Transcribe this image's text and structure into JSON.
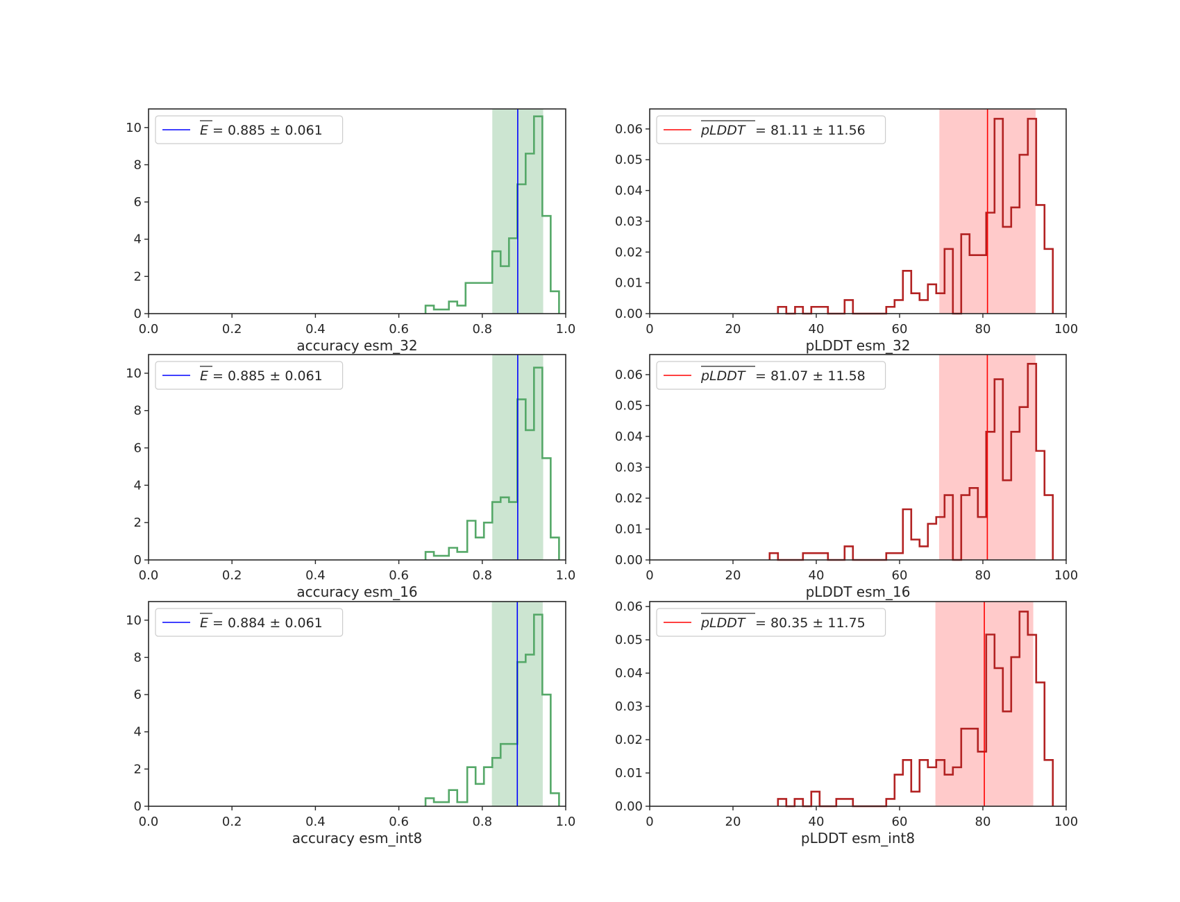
{
  "chart_data": [
    {
      "type": "histogram",
      "position": "row 1, left",
      "xlabel": "accuracy esm_32",
      "xlim": [
        0.0,
        1.0
      ],
      "ylim": [
        0,
        11
      ],
      "xticks": [
        0.0,
        0.2,
        0.4,
        0.6,
        0.8,
        1.0
      ],
      "xtick_labels": [
        "0.0",
        "0.2",
        "0.4",
        "0.6",
        "0.8",
        "1.0"
      ],
      "yticks": [
        0,
        2,
        4,
        6,
        8,
        10
      ],
      "ytick_labels": [
        "0",
        "2",
        "4",
        "6",
        "8",
        "10"
      ],
      "legend": {
        "placement": "upper-left",
        "symbol": "E",
        "text": " = 0.885 ± 0.061"
      },
      "mean": 0.885,
      "std": 0.061,
      "band": [
        0.824,
        0.946
      ],
      "bin_edges": [
        0.664,
        0.684,
        0.72,
        0.74,
        0.76,
        0.824,
        0.844,
        0.864,
        0.884,
        0.904,
        0.924,
        0.944,
        0.964,
        0.984
      ],
      "values": [
        0.43,
        0.22,
        0.65,
        0.43,
        1.65,
        3.35,
        2.55,
        4.05,
        6.95,
        8.6,
        10.6,
        5.25,
        1.2
      ],
      "colors": {
        "hist": "#55a868",
        "band": "#55a868",
        "mean_line": "#0000ff"
      }
    },
    {
      "type": "histogram",
      "position": "row 1, right",
      "xlabel": "pLDDT esm_32",
      "xlim": [
        0,
        100
      ],
      "ylim": [
        0,
        0.0665
      ],
      "xticks": [
        0,
        20,
        40,
        60,
        80,
        100
      ],
      "xtick_labels": [
        "0",
        "20",
        "40",
        "60",
        "80",
        "100"
      ],
      "yticks": [
        0.0,
        0.01,
        0.02,
        0.03,
        0.04,
        0.05,
        0.06
      ],
      "ytick_labels": [
        "0.00",
        "0.01",
        "0.02",
        "0.03",
        "0.04",
        "0.05",
        "0.06"
      ],
      "legend": {
        "placement": "upper-left",
        "symbol": "pLDDT",
        "text": " = 81.11 ± 11.56"
      },
      "mean": 81.11,
      "std": 11.56,
      "band": [
        69.55,
        92.67
      ],
      "bin_edges": [
        30.8,
        32.8,
        34.9,
        36.8,
        38.8,
        40.8,
        42.8,
        44.8,
        46.8,
        48.8,
        50.8,
        52.8,
        54.8,
        56.8,
        58.8,
        60.8,
        62.8,
        64.8,
        66.8,
        68.8,
        70.8,
        72.8,
        74.8,
        76.8,
        78.8,
        80.8,
        82.8,
        84.8,
        86.8,
        88.8,
        90.8,
        92.8,
        94.8,
        96.8
      ],
      "values": [
        0.0022,
        0,
        0.0022,
        0,
        0.0022,
        0.0022,
        0,
        0,
        0.0044,
        0,
        0,
        0,
        0,
        0.0022,
        0.0044,
        0.0139,
        0.0066,
        0.0044,
        0.0095,
        0.0066,
        0.021,
        0.0,
        0.0258,
        0.019,
        0.019,
        0.0328,
        0.0633,
        0.0282,
        0.0345,
        0.0516,
        0.0633,
        0.0353,
        0.021
      ],
      "colors": {
        "hist": "#b22222",
        "band": "#ff9e9e",
        "mean_line": "#ff0000"
      }
    },
    {
      "type": "histogram",
      "position": "row 2, left",
      "xlabel": "accuracy esm_16",
      "xlim": [
        0.0,
        1.0
      ],
      "ylim": [
        0,
        11
      ],
      "xticks": [
        0.0,
        0.2,
        0.4,
        0.6,
        0.8,
        1.0
      ],
      "xtick_labels": [
        "0.0",
        "0.2",
        "0.4",
        "0.6",
        "0.8",
        "1.0"
      ],
      "yticks": [
        0,
        2,
        4,
        6,
        8,
        10
      ],
      "ytick_labels": [
        "0",
        "2",
        "4",
        "6",
        "8",
        "10"
      ],
      "legend": {
        "placement": "upper-left",
        "symbol": "E",
        "text": " = 0.885 ± 0.061"
      },
      "mean": 0.885,
      "std": 0.061,
      "band": [
        0.824,
        0.946
      ],
      "bin_edges": [
        0.664,
        0.684,
        0.72,
        0.74,
        0.764,
        0.784,
        0.804,
        0.824,
        0.844,
        0.864,
        0.884,
        0.904,
        0.924,
        0.944,
        0.964,
        0.984
      ],
      "values": [
        0.43,
        0.22,
        0.65,
        0.43,
        2.1,
        1.2,
        2.0,
        3.1,
        3.35,
        3.1,
        8.6,
        6.95,
        10.3,
        5.45,
        1.2
      ],
      "colors": {
        "hist": "#55a868",
        "band": "#55a868",
        "mean_line": "#0000ff"
      }
    },
    {
      "type": "histogram",
      "position": "row 2, right",
      "xlabel": "pLDDT esm_16",
      "xlim": [
        0,
        100
      ],
      "ylim": [
        0,
        0.0665
      ],
      "xticks": [
        0,
        20,
        40,
        60,
        80,
        100
      ],
      "xtick_labels": [
        "0",
        "20",
        "40",
        "60",
        "80",
        "100"
      ],
      "yticks": [
        0.0,
        0.01,
        0.02,
        0.03,
        0.04,
        0.05,
        0.06
      ],
      "ytick_labels": [
        "0.00",
        "0.01",
        "0.02",
        "0.03",
        "0.04",
        "0.05",
        "0.06"
      ],
      "legend": {
        "placement": "upper-left",
        "symbol": "pLDDT",
        "text": " = 81.07 ± 11.58"
      },
      "mean": 81.07,
      "std": 11.58,
      "band": [
        69.49,
        92.65
      ],
      "bin_edges": [
        28.8,
        30.8,
        32.8,
        34.8,
        36.8,
        38.8,
        40.8,
        42.8,
        44.8,
        46.8,
        48.8,
        50.8,
        52.8,
        54.8,
        56.8,
        58.8,
        60.8,
        62.8,
        64.8,
        66.8,
        68.8,
        70.8,
        72.8,
        74.8,
        76.8,
        78.8,
        80.8,
        82.8,
        84.8,
        86.8,
        88.8,
        90.8,
        92.8,
        94.8,
        96.8
      ],
      "values": [
        0.0022,
        0,
        0,
        0,
        0.0022,
        0.0022,
        0.0022,
        0,
        0,
        0.0044,
        0,
        0,
        0,
        0,
        0.0022,
        0.0022,
        0.0164,
        0.0066,
        0.0044,
        0.0117,
        0.0139,
        0.021,
        0.0,
        0.021,
        0.0233,
        0.0139,
        0.0415,
        0.0585,
        0.0258,
        0.0415,
        0.0495,
        0.0635,
        0.0353,
        0.021
      ],
      "colors": {
        "hist": "#b22222",
        "band": "#ff9e9e",
        "mean_line": "#ff0000"
      }
    },
    {
      "type": "histogram",
      "position": "row 3, left",
      "xlabel": "accuracy esm_int8",
      "xlim": [
        0.0,
        1.0
      ],
      "ylim": [
        0,
        11
      ],
      "xticks": [
        0.0,
        0.2,
        0.4,
        0.6,
        0.8,
        1.0
      ],
      "xtick_labels": [
        "0.0",
        "0.2",
        "0.4",
        "0.6",
        "0.8",
        "1.0"
      ],
      "yticks": [
        0,
        2,
        4,
        6,
        8,
        10
      ],
      "ytick_labels": [
        "0",
        "2",
        "4",
        "6",
        "8",
        "10"
      ],
      "legend": {
        "placement": "upper-left",
        "symbol": "E",
        "text": " = 0.884 ± 0.061"
      },
      "mean": 0.884,
      "std": 0.061,
      "band": [
        0.823,
        0.945
      ],
      "bin_edges": [
        0.664,
        0.684,
        0.72,
        0.74,
        0.764,
        0.784,
        0.804,
        0.824,
        0.844,
        0.884,
        0.904,
        0.924,
        0.944,
        0.964,
        0.984
      ],
      "values": [
        0.43,
        0.22,
        0.87,
        0.22,
        2.1,
        1.2,
        2.1,
        2.6,
        3.35,
        7.75,
        8.15,
        10.3,
        6.0,
        0.7
      ],
      "colors": {
        "hist": "#55a868",
        "band": "#55a868",
        "mean_line": "#0000ff"
      }
    },
    {
      "type": "histogram",
      "position": "row 3, right",
      "xlabel": "pLDDT esm_int8",
      "xlim": [
        0,
        100
      ],
      "ylim": [
        0,
        0.0615
      ],
      "xticks": [
        0,
        20,
        40,
        60,
        80,
        100
      ],
      "xtick_labels": [
        "0",
        "20",
        "40",
        "60",
        "80",
        "100"
      ],
      "yticks": [
        0.0,
        0.01,
        0.02,
        0.03,
        0.04,
        0.05,
        0.06
      ],
      "ytick_labels": [
        "0.00",
        "0.01",
        "0.02",
        "0.03",
        "0.04",
        "0.05",
        "0.06"
      ],
      "legend": {
        "placement": "upper-left",
        "symbol": "pLDDT",
        "text": " = 80.35 ± 11.75"
      },
      "mean": 80.35,
      "std": 11.75,
      "band": [
        68.6,
        92.1
      ],
      "bin_edges": [
        30.8,
        32.8,
        34.8,
        36.8,
        38.8,
        40.8,
        44.8,
        46.8,
        48.8,
        50.8,
        54.8,
        56.8,
        58.8,
        60.8,
        62.8,
        64.8,
        66.8,
        68.8,
        70.8,
        72.8,
        74.8,
        76.8,
        78.8,
        80.8,
        82.8,
        84.8,
        86.8,
        88.8,
        90.8,
        92.8,
        94.8,
        96.8
      ],
      "values": [
        0.0022,
        0,
        0.0022,
        0,
        0.0044,
        0,
        0.0022,
        0.0022,
        0,
        0,
        0,
        0.0022,
        0.0095,
        0.0139,
        0.0044,
        0.0139,
        0.0117,
        0.0139,
        0.0095,
        0.0117,
        0.0233,
        0.0233,
        0.0164,
        0.0516,
        0.0415,
        0.0285,
        0.0448,
        0.0585,
        0.0515,
        0.0372,
        0.0139
      ],
      "colors": {
        "hist": "#b22222",
        "band": "#ff9e9e",
        "mean_line": "#ff0000"
      }
    }
  ]
}
